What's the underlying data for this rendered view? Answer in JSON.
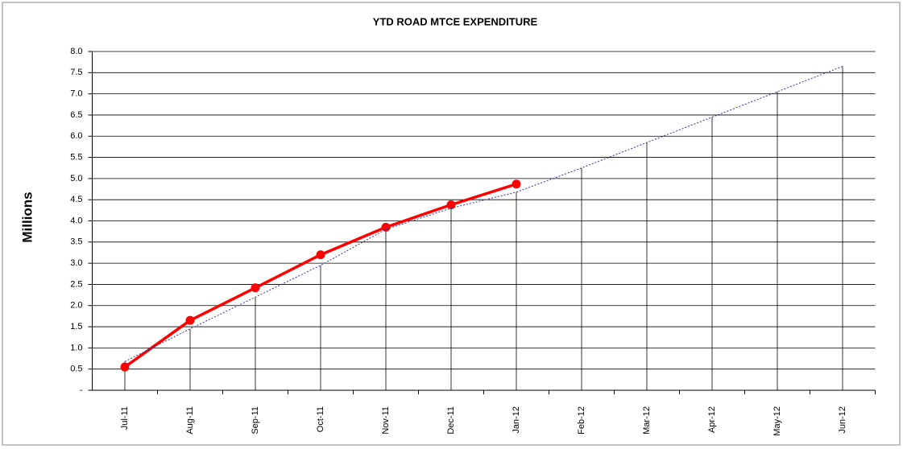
{
  "chart_data": {
    "type": "line",
    "title": "YTD ROAD MTCE EXPENDITURE",
    "y_label": "Millions",
    "categories": [
      "Jul-11",
      "Aug-11",
      "Sep-11",
      "Oct-11",
      "Nov-11",
      "Dec-11",
      "Jan-12",
      "Feb-12",
      "Mar-12",
      "Apr-12",
      "May-12",
      "Jun-12"
    ],
    "series": [
      {
        "color": "#ff0000",
        "values": [
          0.55,
          1.65,
          2.42,
          3.2,
          3.85,
          4.38,
          4.87,
          null,
          null,
          null,
          null,
          null
        ]
      },
      {
        "color": "#333399",
        "values": [
          0.68,
          1.45,
          2.2,
          2.95,
          3.8,
          4.3,
          4.68,
          5.25,
          5.85,
          6.45,
          7.05,
          7.65
        ],
        "drop_lines": true
      }
    ],
    "ylim": [
      0,
      8
    ],
    "yticks": [
      {
        "value": 0,
        "label": "-"
      },
      0.5,
      {
        "value": 1,
        "label": "1.0"
      },
      1.5,
      {
        "value": 2,
        "label": "2.0"
      },
      2.5,
      {
        "value": 3,
        "label": "3.0"
      },
      3.5,
      {
        "value": 4,
        "label": "4.0"
      },
      4.5,
      {
        "value": 5,
        "label": "5.0"
      },
      5.5,
      {
        "value": 6,
        "label": "6.0"
      },
      6.5,
      {
        "value": 7,
        "label": "7.0"
      },
      7.5,
      {
        "value": 8,
        "label": "8.0"
      }
    ],
    "grid": true
  }
}
